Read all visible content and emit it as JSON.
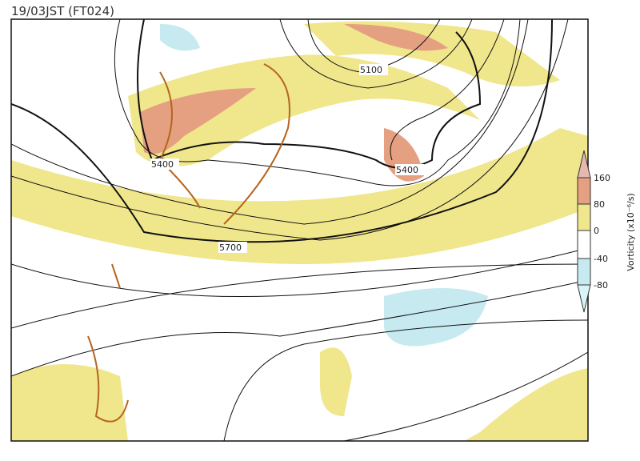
{
  "header": {
    "title": "19/03JST (FT024)"
  },
  "contour_labels": [
    "5400",
    "5100",
    "5400",
    "5700"
  ],
  "colorbar": {
    "label": "Vorticity (x10⁻⁶/s)",
    "ticks": [
      "160",
      "80",
      "0",
      "-40",
      "-80"
    ]
  }
}
